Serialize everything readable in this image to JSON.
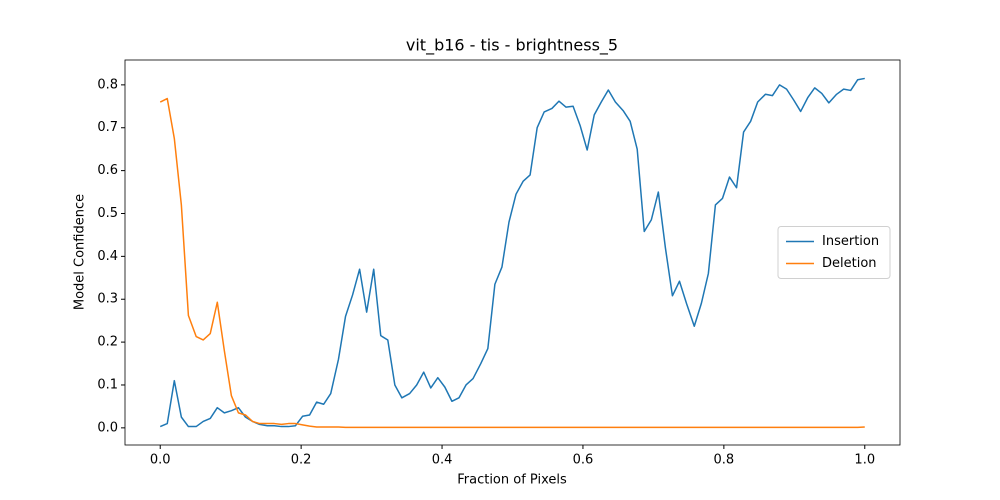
{
  "chart_data": {
    "type": "line",
    "title": "vit_b16 - tis - brightness_5",
    "x_label": "Fraction of Pixels",
    "y_label": "Model Confidence",
    "x": [
      0,
      0.01,
      0.02,
      0.03,
      0.04,
      0.051,
      0.061,
      0.071,
      0.081,
      0.091,
      0.101,
      0.111,
      0.121,
      0.131,
      0.141,
      0.152,
      0.162,
      0.172,
      0.182,
      0.192,
      0.202,
      0.212,
      0.222,
      0.232,
      0.242,
      0.253,
      0.263,
      0.273,
      0.283,
      0.293,
      0.303,
      0.313,
      0.323,
      0.333,
      0.343,
      0.354,
      0.364,
      0.374,
      0.384,
      0.394,
      0.404,
      0.414,
      0.424,
      0.434,
      0.444,
      0.455,
      0.465,
      0.475,
      0.485,
      0.495,
      0.505,
      0.515,
      0.525,
      0.535,
      0.545,
      0.556,
      0.566,
      0.576,
      0.586,
      0.596,
      0.606,
      0.616,
      0.626,
      0.636,
      0.646,
      0.657,
      0.667,
      0.677,
      0.687,
      0.697,
      0.707,
      0.717,
      0.727,
      0.737,
      0.747,
      0.758,
      0.768,
      0.778,
      0.788,
      0.798,
      0.808,
      0.818,
      0.828,
      0.838,
      0.848,
      0.859,
      0.869,
      0.879,
      0.889,
      0.899,
      0.909,
      0.919,
      0.929,
      0.939,
      0.949,
      0.96,
      0.97,
      0.98,
      0.99,
      1
    ],
    "series": [
      {
        "name": "Insertion",
        "color": "#1f77b4",
        "values": [
          0.003,
          0.01,
          0.11,
          0.025,
          0.003,
          0.003,
          0.015,
          0.022,
          0.047,
          0.035,
          0.04,
          0.047,
          0.025,
          0.015,
          0.008,
          0.005,
          0.005,
          0.003,
          0.003,
          0.005,
          0.027,
          0.03,
          0.06,
          0.055,
          0.08,
          0.16,
          0.26,
          0.31,
          0.37,
          0.27,
          0.37,
          0.215,
          0.205,
          0.1,
          0.07,
          0.08,
          0.1,
          0.13,
          0.093,
          0.117,
          0.095,
          0.062,
          0.07,
          0.1,
          0.115,
          0.15,
          0.185,
          0.335,
          0.375,
          0.48,
          0.545,
          0.575,
          0.59,
          0.7,
          0.737,
          0.745,
          0.762,
          0.748,
          0.75,
          0.705,
          0.648,
          0.73,
          0.76,
          0.788,
          0.76,
          0.74,
          0.715,
          0.65,
          0.458,
          0.485,
          0.55,
          0.42,
          0.308,
          0.342,
          0.29,
          0.237,
          0.29,
          0.36,
          0.52,
          0.535,
          0.585,
          0.56,
          0.69,
          0.715,
          0.76,
          0.778,
          0.775,
          0.8,
          0.79,
          0.765,
          0.738,
          0.77,
          0.793,
          0.78,
          0.758,
          0.778,
          0.79,
          0.787,
          0.812,
          0.815
        ]
      },
      {
        "name": "Deletion",
        "color": "#ff7f0e",
        "values": [
          0.76,
          0.768,
          0.675,
          0.52,
          0.262,
          0.213,
          0.205,
          0.22,
          0.293,
          0.18,
          0.075,
          0.035,
          0.03,
          0.015,
          0.01,
          0.01,
          0.01,
          0.008,
          0.01,
          0.01,
          0.007,
          0.004,
          0.002,
          0.002,
          0.002,
          0.002,
          0.001,
          0.001,
          0.001,
          0.001,
          0.001,
          0.001,
          0.001,
          0.001,
          0.001,
          0.001,
          0.001,
          0.001,
          0.001,
          0.001,
          0.001,
          0.001,
          0.001,
          0.001,
          0.001,
          0.001,
          0.001,
          0.001,
          0.001,
          0.001,
          0.001,
          0.001,
          0.001,
          0.001,
          0.001,
          0.001,
          0.001,
          0.001,
          0.001,
          0.001,
          0.001,
          0.001,
          0.001,
          0.001,
          0.001,
          0.001,
          0.001,
          0.001,
          0.001,
          0.001,
          0.001,
          0.001,
          0.001,
          0.001,
          0.001,
          0.001,
          0.001,
          0.001,
          0.001,
          0.001,
          0.001,
          0.001,
          0.001,
          0.001,
          0.001,
          0.001,
          0.001,
          0.001,
          0.001,
          0.001,
          0.001,
          0.001,
          0.001,
          0.001,
          0.001,
          0.001,
          0.001,
          0.001,
          0.001,
          0.002
        ]
      }
    ],
    "xlim": [
      -0.05,
      1.05
    ],
    "ylim": [
      -0.04,
      0.858
    ],
    "xticks": [
      {
        "value": 0,
        "label": "0.0"
      },
      0.2,
      0.4,
      0.6,
      0.8,
      {
        "value": 1,
        "label": "1.0"
      }
    ],
    "yticks": [
      {
        "value": 0,
        "label": "0.0"
      },
      0.1,
      0.2,
      0.3,
      0.4,
      0.5,
      0.6,
      0.7,
      0.8
    ],
    "legend": "center right"
  }
}
